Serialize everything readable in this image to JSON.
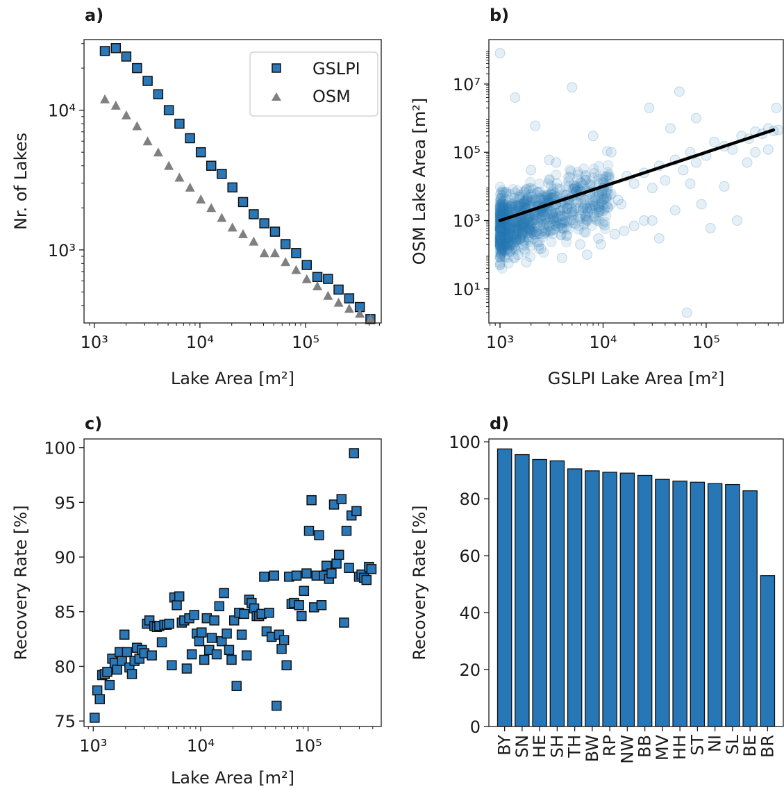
{
  "colors": {
    "gslpi": "#2a78b8",
    "osm": "#808080",
    "bar": "#2776b6",
    "fit": "#000000",
    "edge": "#111111"
  },
  "panel_labels": {
    "a": "a)",
    "b": "b)",
    "c": "c)",
    "d": "d)"
  },
  "chart_data": [
    {
      "id": "a",
      "type": "scatter",
      "title": "",
      "xlabel": "Lake Area [m²]",
      "ylabel": "Nr. of Lakes",
      "xscale": "log",
      "yscale": "log",
      "xlim": [
        800,
        520000
      ],
      "ylim": [
        300,
        32000
      ],
      "xticks": [
        {
          "v": 1000,
          "label": "10³"
        },
        {
          "v": 10000,
          "label": "10⁴"
        },
        {
          "v": 100000,
          "label": "10⁵"
        }
      ],
      "yticks": [
        {
          "v": 1000,
          "label": "10³"
        },
        {
          "v": 10000,
          "label": "10⁴"
        }
      ],
      "grid": false,
      "legend": "top-right",
      "series": [
        {
          "name": "GSLPI",
          "marker": "square",
          "color": "#2a78b8",
          "x": [
            1260,
            1600,
            2010,
            2540,
            3200,
            4030,
            5080,
            6400,
            8060,
            10200,
            12800,
            16100,
            20300,
            25600,
            32300,
            40700,
            51300,
            64600,
            81400,
            102600,
            129300,
            163000,
            205300,
            258700,
            326000,
            410800
          ],
          "y": [
            26500,
            27800,
            24200,
            20000,
            16200,
            13000,
            10000,
            8000,
            6300,
            5000,
            4000,
            3500,
            2800,
            2200,
            1800,
            1550,
            1350,
            1100,
            950,
            780,
            640,
            620,
            520,
            450,
            390,
            320
          ]
        },
        {
          "name": "OSM",
          "marker": "triangle",
          "color": "#808080",
          "x": [
            1260,
            1600,
            2010,
            2540,
            3200,
            4030,
            5080,
            6400,
            8060,
            10200,
            12800,
            16100,
            20300,
            25600,
            32300,
            40700,
            51300,
            64600,
            81400,
            102600,
            129300,
            163000,
            205300,
            258700,
            326000,
            410800
          ],
          "y": [
            12000,
            10800,
            9200,
            7700,
            6000,
            5000,
            4000,
            3300,
            2800,
            2300,
            2000,
            1700,
            1450,
            1300,
            1150,
            950,
            950,
            820,
            720,
            620,
            550,
            470,
            420,
            380,
            350,
            320
          ]
        }
      ]
    },
    {
      "id": "b",
      "type": "scatter",
      "title": "",
      "xlabel": "GSLPI Lake Area [m²]",
      "ylabel": "OSM Lake Area [m²]",
      "xscale": "log",
      "yscale": "log",
      "xlim": [
        780,
        560000
      ],
      "ylim": [
        1,
        200000000
      ],
      "xticks": [
        {
          "v": 1000,
          "label": "10³"
        },
        {
          "v": 10000,
          "label": "10⁴"
        },
        {
          "v": 100000,
          "label": "10⁵"
        }
      ],
      "yticks": [
        {
          "v": 10,
          "label": "10¹"
        },
        {
          "v": 1000,
          "label": "10³"
        },
        {
          "v": 100000,
          "label": "10⁵"
        },
        {
          "v": 10000000,
          "label": "10⁷"
        }
      ],
      "grid": false,
      "point_alpha": 0.12,
      "fit_line": {
        "x": [
          1000,
          450000
        ],
        "y": [
          1000,
          450000
        ]
      },
      "series": [
        {
          "name": "",
          "marker": "circle",
          "color": "#2a78b8",
          "x": [
            1000,
            1100,
            1200,
            1300,
            1500,
            1700,
            2000,
            2300,
            2700,
            3000,
            3500,
            4000,
            4500,
            5000,
            6000,
            7000,
            8000,
            9000,
            10000,
            12000,
            14000,
            17000,
            20000,
            25000,
            30000,
            35000,
            40000,
            50000,
            60000,
            70000,
            80000,
            100000,
            120000,
            150000,
            180000,
            220000,
            260000,
            300000,
            350000,
            400000,
            450000,
            500000,
            2000,
            3000,
            5000,
            8000,
            15000,
            25000,
            45000,
            70000,
            65000,
            1500,
            2500,
            4000,
            6000,
            9000,
            13000,
            20000,
            30000,
            50000,
            90000,
            150000,
            250000,
            400000,
            1200,
            1800,
            3500,
            7000,
            12000,
            35000,
            80000,
            200000,
            480000,
            1000,
            1400,
            2200,
            3200,
            5500,
            9500,
            16000,
            28000,
            55000,
            110000,
            300000
          ],
          "y": [
            200,
            900,
            300,
            1200,
            500,
            800,
            2000,
            400,
            1500,
            700,
            3000,
            600,
            2200,
            1800,
            5000,
            1000,
            3500,
            2500,
            9000,
            6000,
            4000,
            20000,
            12000,
            25000,
            9000,
            40000,
            15000,
            60000,
            30000,
            100000,
            50000,
            80000,
            200000,
            150000,
            120000,
            300000,
            250000,
            400000,
            350000,
            500000,
            420000,
            450000,
            30000,
            60000,
            8000000,
            300000,
            3000,
            1000,
            500000,
            12000,
            2,
            100,
            150,
            80,
            200,
            300,
            400,
            700,
            1000,
            2000,
            3000,
            10000,
            50000,
            120000,
            400,
            60,
            50000,
            100,
            100000,
            300,
            1000000,
            1000,
            2000000,
            80000000,
            4000000,
            600000,
            1500,
            7000,
            200,
            500,
            2000000,
            6000000,
            600,
            100000
          ]
        }
      ]
    },
    {
      "id": "c",
      "type": "scatter",
      "title": "",
      "xlabel": "Lake Area [m²]",
      "ylabel": "Recovery Rate [%]",
      "xscale": "log",
      "yscale": "linear",
      "xlim": [
        820,
        480000
      ],
      "ylim": [
        74.5,
        100.8
      ],
      "xticks": [
        {
          "v": 1000,
          "label": "10³"
        },
        {
          "v": 10000,
          "label": "10⁴"
        },
        {
          "v": 100000,
          "label": "10⁵"
        }
      ],
      "yticks": [
        {
          "v": 75,
          "label": "75"
        },
        {
          "v": 80,
          "label": "80"
        },
        {
          "v": 85,
          "label": "85"
        },
        {
          "v": 90,
          "label": "90"
        },
        {
          "v": 95,
          "label": "95"
        },
        {
          "v": 100,
          "label": "100"
        }
      ],
      "grid": false,
      "series": [
        {
          "name": "",
          "marker": "square",
          "color": "#2a78b8",
          "x": [
            1030,
            1090,
            1150,
            1210,
            1280,
            1350,
            1420,
            1500,
            1580,
            1670,
            1760,
            1850,
            1950,
            2060,
            2170,
            2290,
            2420,
            2550,
            2690,
            2840,
            2990,
            3160,
            3330,
            3510,
            3700,
            3910,
            4120,
            4350,
            4590,
            4840,
            5100,
            5380,
            5680,
            5990,
            6320,
            6670,
            7030,
            7420,
            7830,
            8260,
            8710,
            9190,
            9700,
            10200,
            10800,
            11400,
            12000,
            12700,
            13400,
            14100,
            14900,
            15700,
            16500,
            17500,
            18400,
            19400,
            20500,
            21600,
            22800,
            24100,
            25400,
            26800,
            28300,
            29800,
            31500,
            33200,
            35000,
            36900,
            39000,
            41100,
            43400,
            45800,
            48300,
            50900,
            53700,
            56700,
            59800,
            63100,
            66500,
            70200,
            74100,
            78100,
            82400,
            87000,
            91700,
            96800,
            102000,
            107700,
            113600,
            119900,
            126500,
            133400,
            140800,
            148500,
            156700,
            165300,
            174400,
            184000,
            194200,
            204800,
            216100,
            228000,
            240500,
            253800,
            267700,
            282500,
            298000,
            314400,
            331700,
            350000,
            369200,
            389500
          ],
          "y": [
            75.3,
            77.8,
            77.0,
            79.2,
            79.3,
            79.5,
            78.3,
            80.7,
            80.3,
            79.7,
            81.3,
            80.5,
            82.9,
            81.3,
            79.9,
            79.3,
            80.5,
            81.7,
            80.7,
            81.5,
            81.2,
            83.9,
            84.2,
            81.0,
            83.7,
            83.6,
            83.7,
            82.2,
            83.8,
            83.8,
            83.9,
            80.1,
            86.3,
            85.6,
            86.4,
            84.0,
            84.2,
            79.8,
            84.4,
            81.1,
            84.7,
            83.0,
            82.3,
            83.1,
            80.6,
            84.4,
            81.5,
            82.6,
            84.2,
            81.1,
            85.5,
            82.3,
            86.7,
            83.0,
            81.5,
            80.6,
            84.2,
            78.2,
            84.9,
            82.9,
            84.8,
            81.0,
            86.1,
            85.8,
            85.3,
            84.6,
            84.6,
            84.8,
            88.2,
            83.2,
            84.9,
            82.7,
            88.3,
            76.4,
            82.9,
            81.6,
            82.4,
            80.1,
            88.2,
            85.7,
            85.8,
            88.3,
            85.6,
            84.6,
            86.9,
            88.5,
            92.4,
            95.2,
            85.4,
            88.3,
            92.0,
            85.6,
            88.3,
            89.2,
            88.0,
            88.5,
            94.8,
            89.4,
            90.2,
            95.3,
            84.0,
            92.4,
            89.0,
            93.8,
            99.5,
            94.2,
            88.2,
            88.4,
            88.1,
            87.9,
            89.1,
            88.9
          ]
        }
      ]
    },
    {
      "id": "d",
      "type": "bar",
      "title": "",
      "xlabel": "",
      "ylabel": "Recovery Rate [%]",
      "ylim": [
        0,
        101
      ],
      "yticks": [
        {
          "v": 0,
          "label": "0"
        },
        {
          "v": 20,
          "label": "20"
        },
        {
          "v": 40,
          "label": "40"
        },
        {
          "v": 60,
          "label": "60"
        },
        {
          "v": 80,
          "label": "80"
        },
        {
          "v": 100,
          "label": "100"
        }
      ],
      "grid": false,
      "categories": [
        "BY",
        "SN",
        "HE",
        "SH",
        "TH",
        "BW",
        "RP",
        "NW",
        "BB",
        "MV",
        "HH",
        "ST",
        "NI",
        "SL",
        "BE",
        "BR"
      ],
      "values": [
        97.5,
        95.5,
        93.8,
        93.3,
        90.5,
        89.8,
        89.3,
        89.0,
        88.2,
        86.8,
        86.2,
        85.8,
        85.3,
        85.0,
        82.8,
        53.0
      ]
    }
  ]
}
